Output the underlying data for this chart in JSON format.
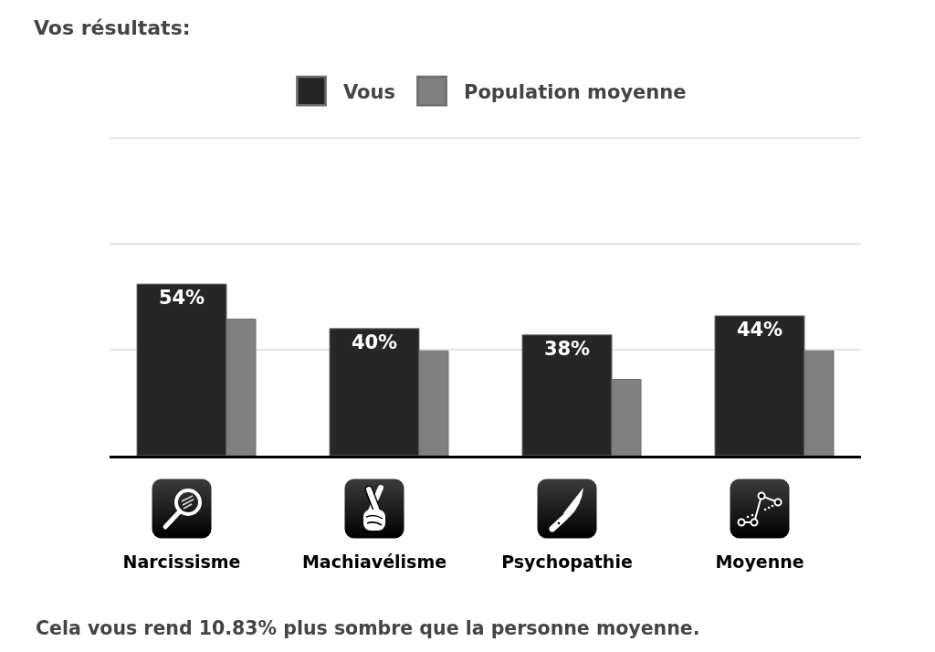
{
  "chart_data": {
    "type": "bar",
    "title": "Vos résultats:",
    "categories": [
      "Narcissisme",
      "Machiavélisme",
      "Psychopathie",
      "Moyenne"
    ],
    "series": [
      {
        "name": "Vous",
        "color": "#262626",
        "values": [
          54,
          40,
          38,
          44
        ],
        "value_labels": [
          "54%",
          "40%",
          "38%",
          "44%"
        ]
      },
      {
        "name": "Population moyenne",
        "color": "#808080",
        "values": [
          43,
          33,
          24,
          33
        ]
      }
    ],
    "ylim": [
      0,
      100
    ],
    "yticks": [
      {
        "value": 33.3,
        "label": null
      },
      {
        "value": 66.7,
        "label": null
      },
      {
        "value": 100,
        "label": null
      }
    ],
    "grid": "y",
    "legend": "top",
    "tick_labels": "x",
    "annotations": [
      "Cela vous rend 10.83% plus sombre que la personne moyenne."
    ]
  }
}
